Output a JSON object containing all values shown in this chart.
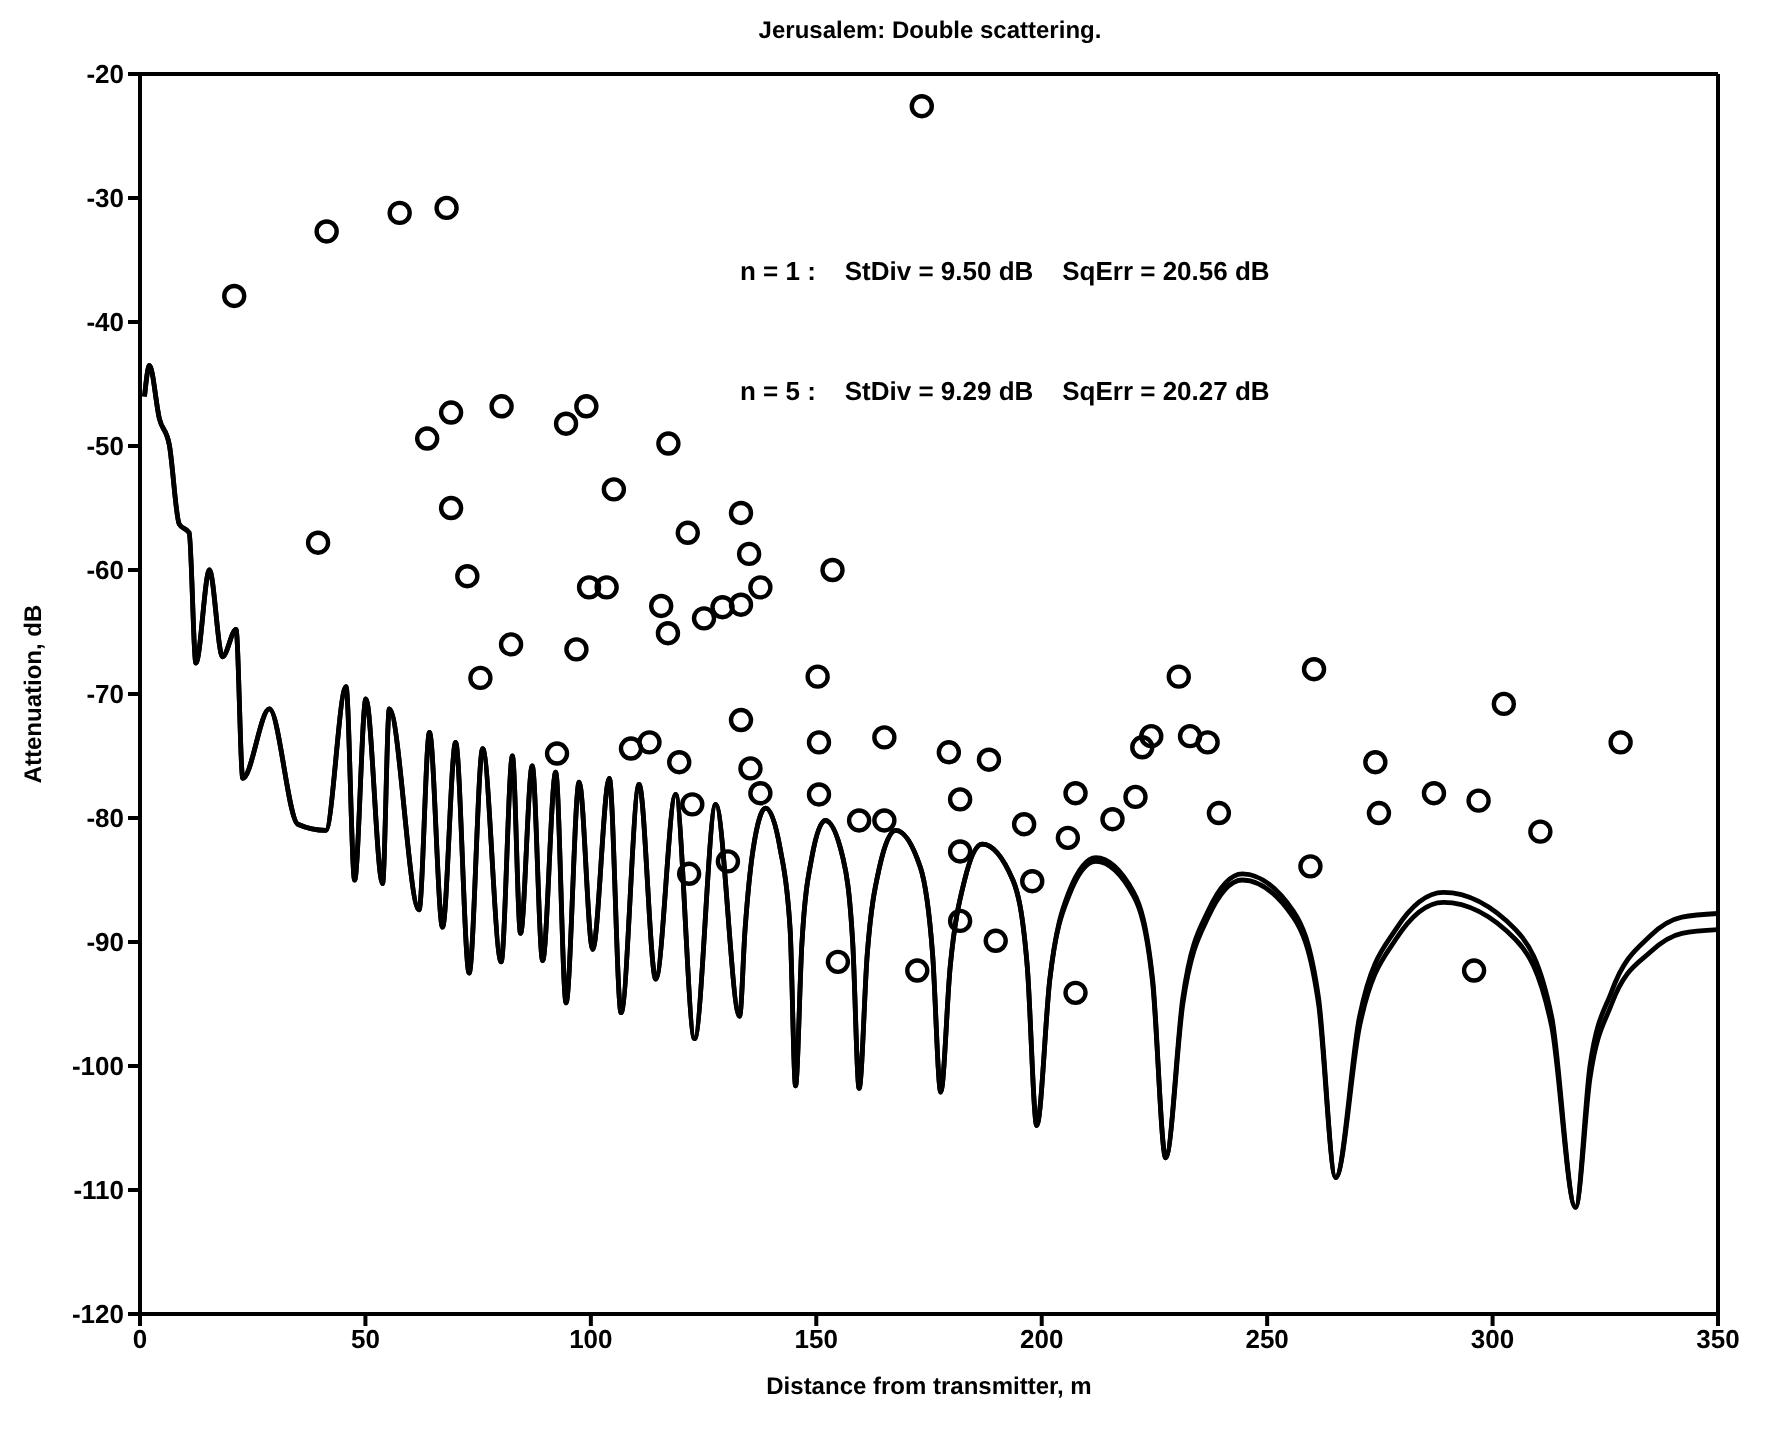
{
  "chart_data": {
    "type": "scatter",
    "title": "Jerusalem: Double scattering.",
    "xlabel": "Distance from transmitter, m",
    "ylabel": "Attenuation, dB",
    "annotations": [
      "n = 1 :    StDiv = 9.50 dB    SqErr = 20.56 dB",
      "n = 5 :    StDiv = 9.29 dB    SqErr = 20.27 dB"
    ],
    "xlim": [
      0,
      350
    ],
    "xticks": [
      0,
      50,
      100,
      150,
      200,
      250,
      300,
      350
    ],
    "ylim": [
      -120,
      -20
    ],
    "yticks": [
      -120,
      -110,
      -100,
      -90,
      -80,
      -70,
      -60,
      -50,
      -40,
      -30,
      -20
    ],
    "grid": false,
    "legend": false,
    "series": [
      {
        "type": "scatter",
        "marker": "circle",
        "color": "#000000",
        "x": [
          20.9,
          41.4,
          57.6,
          68,
          173.4,
          63.7,
          69,
          80.2,
          94.5,
          99,
          117.2,
          105.1,
          69,
          121.5,
          133.3,
          39.5,
          72.6,
          99.6,
          103.5,
          115.6,
          117.1,
          125.1,
          129.2,
          135.1,
          137.6,
          133.3,
          153.6,
          150.3,
          230.4,
          260.4,
          302.5,
          82.3,
          96.8,
          75.5,
          92.5,
          108.9,
          113,
          119.6,
          133.3,
          135.4,
          137.6,
          122.5,
          121.8,
          130.4,
          150.6,
          150.6,
          165.1,
          159.5,
          165.1,
          154.8,
          172.4,
          179.4,
          188.3,
          181.9,
          181.9,
          181.9,
          189.8,
          196.1,
          197.9,
          207.5,
          205.8,
          207.5,
          215.7,
          220.8,
          222.3,
          224.3,
          232.9,
          236.8,
          239.3,
          259.6,
          274,
          274.8,
          287,
          296.9,
          295.9,
          310.6,
          328.4
        ],
        "values": [
          -37.9,
          -32.7,
          -31.2,
          -30.8,
          -22.6,
          -49.4,
          -47.3,
          -46.8,
          -48.2,
          -46.8,
          -49.8,
          -53.5,
          -55,
          -57,
          -55.4,
          -57.8,
          -60.5,
          -61.4,
          -61.4,
          -62.9,
          -65.1,
          -63.9,
          -63,
          -58.7,
          -61.4,
          -62.8,
          -60,
          -68.6,
          -68.6,
          -68,
          -70.8,
          -66,
          -66.4,
          -68.7,
          -74.8,
          -74.4,
          -73.9,
          -75.5,
          -72.1,
          -76,
          -78,
          -78.9,
          -84.5,
          -83.5,
          -73.9,
          -78.1,
          -73.5,
          -80.2,
          -80.2,
          -91.6,
          -92.3,
          -74.7,
          -75.3,
          -78.5,
          -82.7,
          -88.3,
          -89.9,
          -80.5,
          -85.1,
          -78,
          -81.6,
          -94.1,
          -80.1,
          -78.3,
          -74.3,
          -73.4,
          -73.4,
          -73.9,
          -79.6,
          -83.9,
          -75.5,
          -79.6,
          -78,
          -78.6,
          -92.3,
          -81.1,
          -73.9
        ]
      },
      {
        "type": "line",
        "marker": "none",
        "color": "#000000",
        "x": [
          1,
          2.1,
          4.3,
          6.5,
          8.7,
          10.9,
          12.4,
          15.4,
          18.3,
          21.3,
          22.8,
          28.7,
          35,
          41.2,
          45.7,
          47.6,
          50.1,
          53.8,
          55.3,
          61.9,
          64.2,
          67.1,
          70,
          73,
          76,
          80.1,
          82.6,
          84.4,
          87,
          89.3,
          92.2,
          94.5,
          97.4,
          100.4,
          104.1,
          106.7,
          110.7,
          114.4,
          118.8,
          123,
          127.7,
          133,
          134.2,
          136,
          138.8,
          142,
          144.2,
          145.4,
          146.8,
          149,
          152,
          155.9,
          158.1,
          159.5,
          161.3,
          164,
          167.6,
          173.1,
          175.8,
          177.6,
          179.7,
          182.9,
          186.8,
          193.6,
          196.8,
          198.9,
          201.8,
          206,
          212,
          220.4,
          224.6,
          227.5,
          231.3,
          236.9,
          244.5,
          255.8,
          261.4,
          265.2,
          270.5,
          278.5,
          289.1,
          305.1,
          313.1,
          318.4,
          321.6,
          326.4,
          335,
          342,
          350
        ],
        "values": [
          -46,
          -43.5,
          -47.8,
          -49.9,
          -56.3,
          -57,
          -67.5,
          -60,
          -67,
          -64.8,
          -76.8,
          -71.2,
          -80.5,
          -81,
          -69.4,
          -85,
          -70.4,
          -85.3,
          -71.2,
          -87.4,
          -73.1,
          -88.8,
          -73.9,
          -92.5,
          -74.4,
          -91.6,
          -75,
          -89.3,
          -75.8,
          -91.5,
          -76.3,
          -94.9,
          -77.1,
          -90.6,
          -76.8,
          -95.7,
          -77.3,
          -93,
          -78.1,
          -97.8,
          -78.9,
          -96,
          -89,
          -82.5,
          -79.2,
          -82.5,
          -89,
          -101.6,
          -90.2,
          -83.2,
          -80.2,
          -83.2,
          -90.2,
          -101.8,
          -91,
          -84,
          -81,
          -84,
          -91,
          -102.1,
          -92,
          -85,
          -82.1,
          -85,
          -92,
          -104.8,
          -93,
          -86,
          -83.2,
          -86,
          -93,
          -107.4,
          -94.5,
          -87.5,
          -84.5,
          -87.5,
          -94.5,
          -109,
          -96,
          -89,
          -86,
          -89,
          -96,
          -111.4,
          -100,
          -94,
          -89.5,
          -88,
          -87.7
        ]
      },
      {
        "type": "line",
        "marker": "none",
        "color": "#000000",
        "x": [
          1,
          2.1,
          4.3,
          6.5,
          8.7,
          10.9,
          12.4,
          15.4,
          18.3,
          21.3,
          22.8,
          28.7,
          35,
          41.2,
          45.7,
          47.6,
          50.1,
          53.8,
          55.3,
          61.9,
          64.2,
          67.1,
          70,
          73,
          76,
          80.1,
          82.6,
          84.4,
          87,
          89.3,
          92.2,
          94.5,
          97.4,
          100.4,
          104.1,
          106.7,
          110.7,
          114.4,
          118.8,
          123,
          127.7,
          133,
          134.2,
          136,
          138.8,
          142,
          144.2,
          145.4,
          146.8,
          149,
          152,
          155.9,
          158.1,
          159.5,
          161.3,
          164,
          167.6,
          173.1,
          175.8,
          177.6,
          179.7,
          182.9,
          186.8,
          193.6,
          196.8,
          198.9,
          201.8,
          206,
          212,
          220.4,
          224.6,
          227.5,
          231.3,
          236.9,
          244.5,
          255.8,
          261.4,
          265.2,
          270.5,
          278.5,
          289.1,
          305.1,
          313.1,
          318.4,
          321.6,
          326.4,
          335,
          342,
          350
        ],
        "values": [
          -46,
          -43.5,
          -47.8,
          -49.9,
          -56.3,
          -57,
          -67.5,
          -60,
          -67,
          -64.8,
          -76.8,
          -71.2,
          -80.5,
          -81,
          -69.4,
          -85,
          -70.4,
          -85.3,
          -71.2,
          -87.4,
          -73.1,
          -88.8,
          -73.9,
          -92.5,
          -74.4,
          -91.6,
          -75,
          -89.3,
          -75.8,
          -91.5,
          -76.3,
          -94.9,
          -77.1,
          -90.6,
          -76.8,
          -95.7,
          -77.3,
          -93,
          -78.1,
          -97.8,
          -78.9,
          -96,
          -89,
          -82.5,
          -79.2,
          -82.5,
          -89,
          -101.6,
          -90.2,
          -83.2,
          -80.2,
          -83.2,
          -90.2,
          -101.8,
          -91,
          -84,
          -81,
          -84,
          -91,
          -102.1,
          -92,
          -85,
          -82.1,
          -85,
          -92,
          -104.8,
          -93,
          -86.3,
          -83.5,
          -86.3,
          -93.3,
          -107.4,
          -95,
          -88,
          -85,
          -88,
          -95,
          -109,
          -96.8,
          -89.8,
          -86.8,
          -89.8,
          -96.8,
          -111.4,
          -101,
          -95,
          -90.8,
          -89.3,
          -89
        ]
      }
    ]
  }
}
